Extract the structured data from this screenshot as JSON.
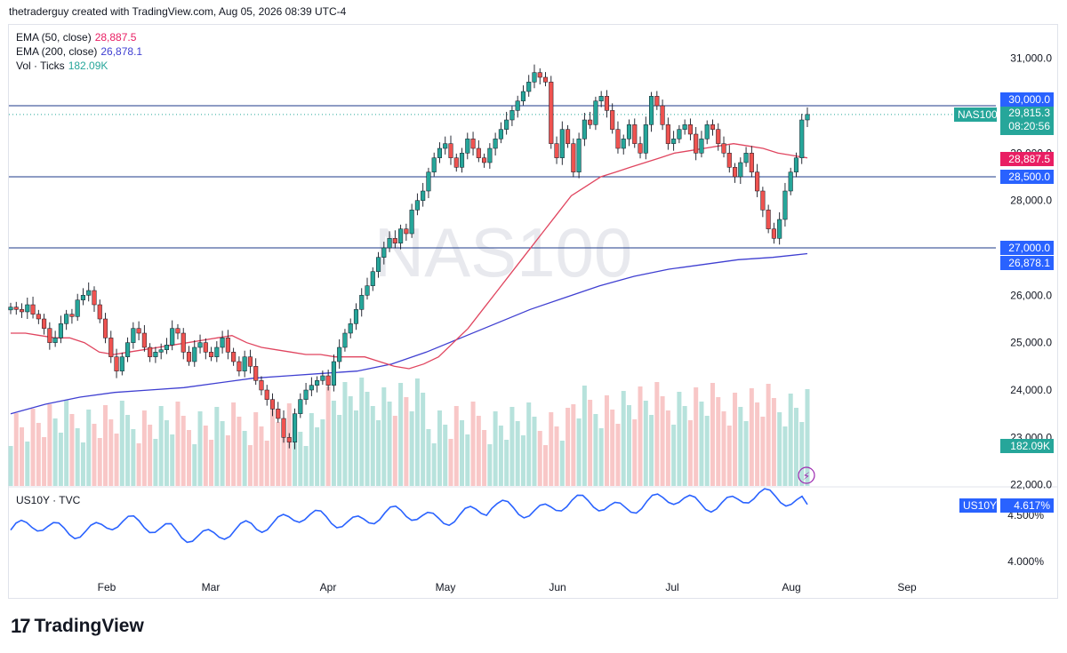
{
  "header": {
    "attribution": "thetraderguy created with TradingView.com, Aug 05, 2026 08:39 UTC-4"
  },
  "watermark": "NAS100",
  "legend_main": [
    {
      "name": "EMA (50, close)",
      "value": "28,887.5",
      "color": "#e91e63"
    },
    {
      "name": "EMA (200, close)",
      "value": "26,878.1",
      "color": "#3f3fd1"
    },
    {
      "name": "Vol · Ticks",
      "value": "182.09K",
      "color": "#26a69a"
    }
  ],
  "legend_sub": {
    "name": "US10Y · TVC"
  },
  "price_axis_ticks": [
    "31,000.0",
    "30,000.0",
    "29,000.0",
    "28,000.0",
    "27,000.0",
    "26,000.0",
    "25,000.0",
    "24,000.0",
    "23,000.0",
    "22,000.0"
  ],
  "sub_axis_ticks": [
    "4.500%",
    "4.000%"
  ],
  "time_axis": [
    "Feb",
    "Mar",
    "Apr",
    "May",
    "Jun",
    "Jul",
    "Aug",
    "Sep"
  ],
  "tags": {
    "level_30000": {
      "text": "30,000.0",
      "color": "#2962ff"
    },
    "last_price": {
      "text": "29,815.3",
      "countdown": "08:20:56",
      "color": "#26a69a"
    },
    "symbol": {
      "text": "NAS100",
      "color": "#26a69a"
    },
    "ema50": {
      "text": "28,887.5",
      "color": "#e91e63"
    },
    "level_28500": {
      "text": "28,500.0",
      "color": "#2962ff"
    },
    "level_27000": {
      "text": "27,000.0",
      "color": "#2962ff"
    },
    "ema200": {
      "text": "26,878.1",
      "color": "#2962ff"
    },
    "volume": {
      "text": "182.09K",
      "color": "#26a69a"
    },
    "us10y_symbol": {
      "text": "US10Y",
      "color": "#2962ff"
    },
    "us10y_value": {
      "text": "4.617%",
      "color": "#2962ff"
    }
  },
  "brand": {
    "logo": "17",
    "name": "TradingView"
  },
  "chart_data": {
    "type": "candlestick",
    "symbol": "NAS100",
    "interval": "1D",
    "ylim": [
      22000,
      31500
    ],
    "horizontal_levels": [
      30000,
      28500,
      27000
    ],
    "last_price": 29815.3,
    "closes": [
      25750,
      25700,
      25650,
      25800,
      25600,
      25500,
      25300,
      25000,
      25100,
      25400,
      25600,
      25550,
      25900,
      26000,
      26100,
      25800,
      25500,
      25100,
      24700,
      24400,
      24700,
      25000,
      25300,
      25200,
      24900,
      24700,
      24800,
      24850,
      24950,
      25300,
      25200,
      24800,
      24600,
      24900,
      25000,
      24800,
      24700,
      24900,
      25100,
      24800,
      24600,
      24400,
      24700,
      24500,
      24200,
      24000,
      23800,
      23600,
      23400,
      23000,
      22900,
      23500,
      23800,
      24000,
      24100,
      24200,
      24300,
      24100,
      24600,
      24900,
      25200,
      25400,
      25700,
      26000,
      26200,
      26500,
      26800,
      27000,
      27200,
      27100,
      27400,
      27300,
      27800,
      28000,
      28200,
      28600,
      28900,
      29100,
      29200,
      28900,
      28700,
      29000,
      29300,
      29100,
      28900,
      28800,
      29100,
      29300,
      29500,
      29700,
      29900,
      30100,
      30300,
      30500,
      30700,
      30600,
      30500,
      29200,
      28900,
      29500,
      29200,
      28600,
      29300,
      29700,
      29600,
      30100,
      30200,
      29900,
      29500,
      29100,
      29300,
      29600,
      29200,
      29000,
      29600,
      30200,
      30000,
      29600,
      29200,
      29300,
      29500,
      29600,
      29400,
      29000,
      29300,
      29600,
      29500,
      29200,
      29000,
      28700,
      28500,
      28800,
      29000,
      28600,
      28200,
      27800,
      27400,
      27200,
      27600,
      28200,
      28600,
      28900,
      29700,
      29815
    ],
    "ema50": [
      25200,
      25200,
      25150,
      25100,
      25100,
      25000,
      24800,
      24750,
      24800,
      24850,
      24900,
      24950,
      25000,
      25050,
      25100,
      25150,
      25000,
      24900,
      24850,
      24800,
      24750,
      24750,
      24700,
      24700,
      24700,
      24600,
      24500,
      24450,
      24550,
      24700,
      25000,
      25300,
      25700,
      26100,
      26500,
      26900,
      27300,
      27700,
      28100,
      28300,
      28500,
      28600,
      28700,
      28800,
      28900,
      29000,
      29050,
      29100,
      29150,
      29200,
      29150,
      29100,
      29000,
      28950,
      28900
    ],
    "ema200": [
      23500,
      23700,
      23850,
      23950,
      24000,
      24050,
      24150,
      24250,
      24300,
      24350,
      24400,
      24550,
      24800,
      25100,
      25400,
      25700,
      25950,
      26200,
      26400,
      26550,
      26650,
      26750,
      26800,
      26878
    ],
    "volume_ticks_k": "182.09K",
    "us10y": {
      "name": "US10Y",
      "last": 4.617,
      "ylim": [
        3.9,
        4.75
      ]
    }
  }
}
